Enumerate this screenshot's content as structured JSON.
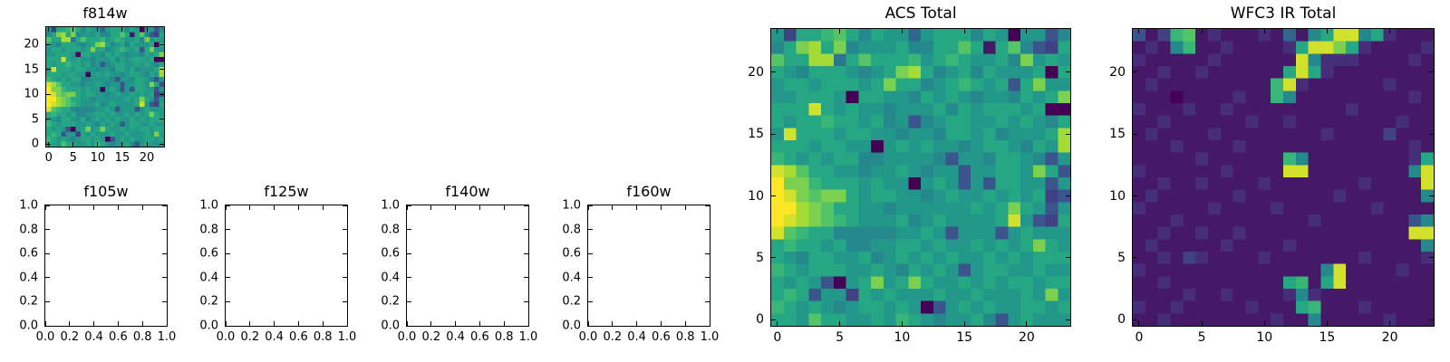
{
  "figure": {
    "background": "#ffffff",
    "frame_color": "#000000",
    "text_color": "#000000"
  },
  "colormap": {
    "name": "viridis",
    "stops": [
      [
        0.0,
        68,
        1,
        84
      ],
      [
        0.125,
        71,
        44,
        122
      ],
      [
        0.25,
        59,
        81,
        139
      ],
      [
        0.375,
        44,
        113,
        142
      ],
      [
        0.5,
        33,
        144,
        141
      ],
      [
        0.625,
        39,
        173,
        129
      ],
      [
        0.75,
        92,
        200,
        99
      ],
      [
        0.875,
        170,
        220,
        50
      ],
      [
        1.0,
        253,
        231,
        37
      ]
    ]
  },
  "chart_data": [
    {
      "id": "f814w",
      "type": "heatmap",
      "title": "f814w",
      "xlim": [
        -0.5,
        23.5
      ],
      "ylim": [
        -0.5,
        23.5
      ],
      "xticks": [
        0,
        5,
        10,
        15,
        20
      ],
      "xtick_labels": [
        "0",
        "5",
        "10",
        "15",
        "20"
      ],
      "yticks": [
        0,
        5,
        10,
        15,
        20
      ],
      "ytick_labels": [
        "0",
        "5",
        "10",
        "15",
        "20"
      ],
      "grid_ref": "acs_total",
      "grid_on": false,
      "legend": "none"
    },
    {
      "id": "f105w",
      "type": "empty",
      "title": "f105w",
      "xlim": [
        0,
        1
      ],
      "ylim": [
        0,
        1
      ],
      "xticks": [
        0,
        0.2,
        0.4,
        0.6,
        0.8,
        1.0
      ],
      "xtick_labels": [
        "0.0",
        "0.2",
        "0.4",
        "0.6",
        "0.8",
        "1.0"
      ],
      "yticks": [
        0,
        0.2,
        0.4,
        0.6,
        0.8,
        1.0
      ],
      "ytick_labels": [
        "0.0",
        "0.2",
        "0.4",
        "0.6",
        "0.8",
        "1.0"
      ],
      "grid_on": false,
      "legend": "none"
    },
    {
      "id": "f125w",
      "type": "empty",
      "title": "f125w",
      "xlim": [
        0,
        1
      ],
      "ylim": [
        0,
        1
      ],
      "xticks": [
        0,
        0.2,
        0.4,
        0.6,
        0.8,
        1.0
      ],
      "xtick_labels": [
        "0.0",
        "0.2",
        "0.4",
        "0.6",
        "0.8",
        "1.0"
      ],
      "yticks": [
        0,
        0.2,
        0.4,
        0.6,
        0.8,
        1.0
      ],
      "ytick_labels": [
        "0.0",
        "0.2",
        "0.4",
        "0.6",
        "0.8",
        "1.0"
      ],
      "grid_on": false,
      "legend": "none"
    },
    {
      "id": "f140w",
      "type": "empty",
      "title": "f140w",
      "xlim": [
        0,
        1
      ],
      "ylim": [
        0,
        1
      ],
      "xticks": [
        0,
        0.2,
        0.4,
        0.6,
        0.8,
        1.0
      ],
      "xtick_labels": [
        "0.0",
        "0.2",
        "0.4",
        "0.6",
        "0.8",
        "1.0"
      ],
      "yticks": [
        0,
        0.2,
        0.4,
        0.6,
        0.8,
        1.0
      ],
      "ytick_labels": [
        "0.0",
        "0.2",
        "0.4",
        "0.6",
        "0.8",
        "1.0"
      ],
      "grid_on": false,
      "legend": "none"
    },
    {
      "id": "f160w",
      "type": "empty",
      "title": "f160w",
      "xlim": [
        0,
        1
      ],
      "ylim": [
        0,
        1
      ],
      "xticks": [
        0,
        0.2,
        0.4,
        0.6,
        0.8,
        1.0
      ],
      "xtick_labels": [
        "0.0",
        "0.2",
        "0.4",
        "0.6",
        "0.8",
        "1.0"
      ],
      "yticks": [
        0,
        0.2,
        0.4,
        0.6,
        0.8,
        1.0
      ],
      "ytick_labels": [
        "0.0",
        "0.2",
        "0.4",
        "0.6",
        "0.8",
        "1.0"
      ],
      "grid_on": false,
      "legend": "none"
    },
    {
      "id": "acs",
      "type": "heatmap",
      "title": "ACS Total",
      "xlim": [
        -0.5,
        23.5
      ],
      "ylim": [
        -0.5,
        23.5
      ],
      "xticks": [
        0,
        5,
        10,
        15,
        20
      ],
      "xtick_labels": [
        "0",
        "5",
        "10",
        "15",
        "20"
      ],
      "yticks": [
        0,
        5,
        10,
        15,
        20
      ],
      "ytick_labels": [
        "0",
        "5",
        "10",
        "15",
        "20"
      ],
      "grid_ref": "acs_total",
      "grid_on": false,
      "legend": "none"
    },
    {
      "id": "wfc3",
      "type": "heatmap",
      "title": "WFC3 IR Total",
      "xlim": [
        -0.5,
        23.5
      ],
      "ylim": [
        -0.5,
        23.5
      ],
      "xticks": [
        0,
        5,
        10,
        15,
        20
      ],
      "xtick_labels": [
        "0",
        "5",
        "10",
        "15",
        "20"
      ],
      "yticks": [
        0,
        5,
        10,
        15,
        20
      ],
      "ytick_labels": [
        "0",
        "5",
        "10",
        "15",
        "20"
      ],
      "grid_ref": "wfc3_total",
      "grid_on": false,
      "legend": "none"
    }
  ],
  "grids": {
    "encoding": "rows listed top (y=23) to bottom (y=0); each char is a hex digit 0-f mapped to normalized intensity 0-1 through the viridis colormap",
    "acs_total": [
      "8399ab979885899979808847",
      "79cd9c788897799b919b7439",
      "b99dd69b999a89a98897c898",
      "9879998789cd978979888909",
      "899899989c99789a98949c88",
      "88999809988798987887989c",
      "999e98988788897989998900",
      "9899a9989784789988989879",
      "8e999899887887998978889d",
      "99989988089898878998798d",
      "a98989977888874887998748",
      "edb998878898788488998c94",
      "fcca99989880898484998848",
      "fecbcc989988789889898934",
      "ffdcb99887888888989c9848",
      "fedcba9888978988889e8439",
      "eba997777788984888489888",
      "9a9989778899898898989c98",
      "987998897898989889898999",
      "a98999889879898489988988",
      "98984089c89c988989899899",
      "9a94883989888988988898c8",
      "a98987899898048989889989",
      "998b998898a9878897489888"
    ],
    "wfc3_total": [
      "413ab12111215179ee792111",
      "1217a112111129eec9211112",
      "2111112111111e7222111121",
      "1121121111119e9211111111",
      "12111111111ae21111112111",
      "11101111211a711111111121",
      "211121121111111112111111",
      "112111111211211111111211",
      "121111211111111211113111",
      "111211112111111111111121",
      "111112111111a71111111129",
      "211111121111ee111111117e",
      "11211211112111111121111e",
      "121111112111111121111117",
      "211111211112111111121111",
      "111211111111112111111147",
      "1121121121111111111111ee",
      "121111121111211111111117",
      "112132111121111111211112",
      "2111111111111117e1111211",
      "1121111111119a19e1111111",
      "111121121111272111111111",
      "21121111121119a111211111",
      "112111111112117111112111"
    ]
  }
}
